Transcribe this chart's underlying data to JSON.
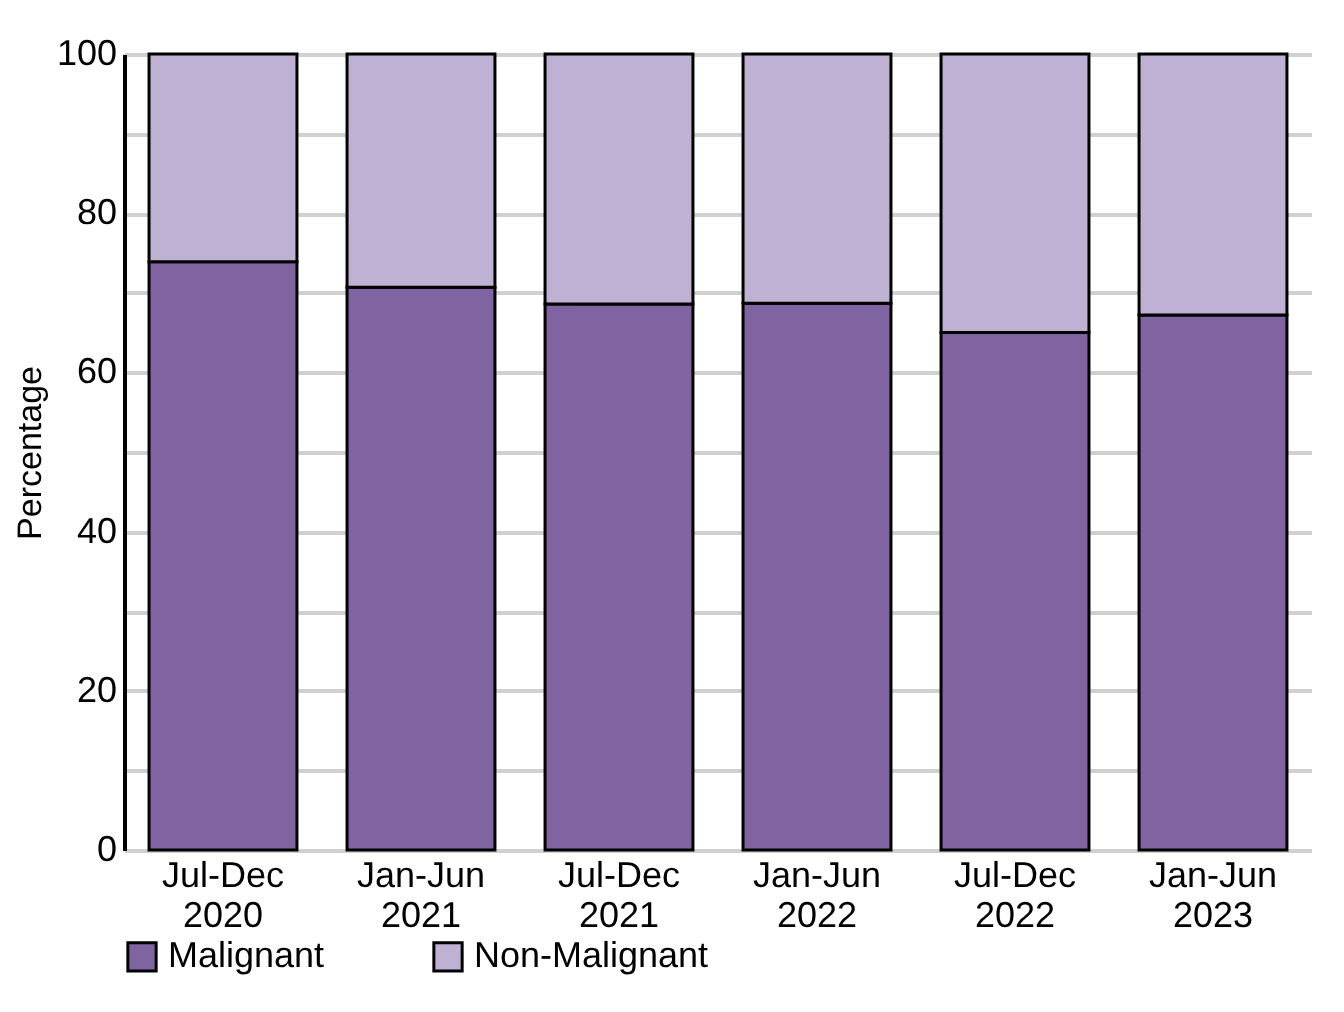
{
  "chart_data": {
    "type": "bar",
    "stacked": true,
    "ylabel": "Percentage",
    "categories": [
      "Jul-Dec 2020",
      "Jan-Jun 2021",
      "Jul-Dec 2021",
      "Jan-Jun 2022",
      "Jul-Dec 2022",
      "Jan-Jun 2023"
    ],
    "series": [
      {
        "name": "Malignant",
        "color": "#8064a2",
        "values": [
          73.9,
          70.7,
          68.6,
          68.7,
          65.0,
          67.2
        ]
      },
      {
        "name": "Non-Malignant",
        "color": "#bfb1d3",
        "values": [
          26.1,
          29.3,
          31.4,
          31.3,
          35.0,
          32.8
        ]
      }
    ],
    "ylim": [
      0,
      100
    ],
    "yticks": [
      0,
      {
        "value": 10,
        "label": null
      },
      20,
      {
        "value": 30,
        "label": null
      },
      40,
      {
        "value": 50,
        "label": null
      },
      60,
      {
        "value": 70,
        "label": null
      },
      80,
      {
        "value": 90,
        "label": null
      },
      100
    ],
    "grid": "y",
    "legend": "bottom"
  }
}
